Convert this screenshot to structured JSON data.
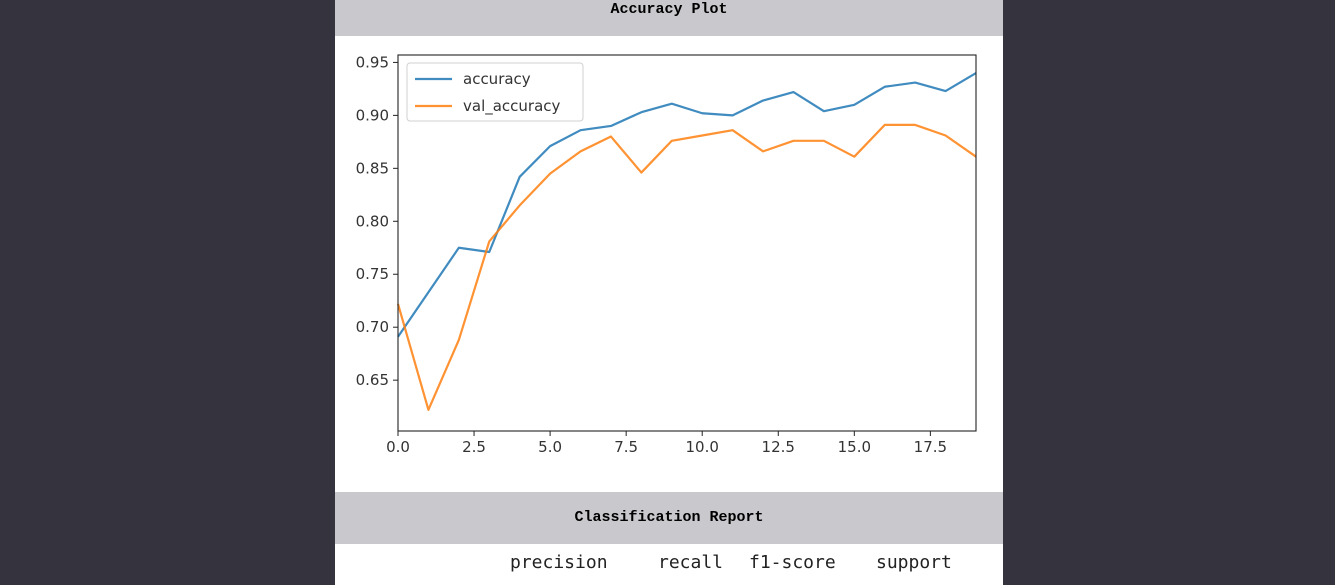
{
  "headers": {
    "accuracy_plot": "Accuracy Plot",
    "classification_report": "Classification Report"
  },
  "report": {
    "columns": [
      "precision",
      "recall",
      "f1-score",
      "support"
    ]
  },
  "colors": {
    "background": "#34333e",
    "header_bg": "#c8c8cd",
    "accuracy": "#1f77b4",
    "val_accuracy": "#ff7f0e"
  },
  "chart_data": {
    "type": "line",
    "title": "",
    "xlabel": "",
    "ylabel": "",
    "xlim": [
      0,
      19
    ],
    "ylim": [
      0.602,
      0.957
    ],
    "xticks": [
      0.0,
      2.5,
      5.0,
      7.5,
      10.0,
      12.5,
      15.0,
      17.5
    ],
    "xtick_labels": [
      "0.0",
      "2.5",
      "5.0",
      "7.5",
      "10.0",
      "12.5",
      "15.0",
      "17.5"
    ],
    "yticks": [
      0.65,
      0.7,
      0.75,
      0.8,
      0.85,
      0.9,
      0.95
    ],
    "ytick_labels": [
      "0.65",
      "0.70",
      "0.75",
      "0.80",
      "0.85",
      "0.90",
      "0.95"
    ],
    "grid": false,
    "legend_position": "top-left",
    "x": [
      0,
      1,
      2,
      3,
      4,
      5,
      6,
      7,
      8,
      9,
      10,
      11,
      12,
      13,
      14,
      15,
      16,
      17,
      18,
      19
    ],
    "series": [
      {
        "name": "accuracy",
        "color": "#1f77b4",
        "values": [
          0.691,
          0.733,
          0.775,
          0.771,
          0.842,
          0.871,
          0.886,
          0.89,
          0.903,
          0.911,
          0.902,
          0.9,
          0.914,
          0.922,
          0.904,
          0.91,
          0.927,
          0.931,
          0.923,
          0.94
        ]
      },
      {
        "name": "val_accuracy",
        "color": "#ff7f0e",
        "values": [
          0.722,
          0.622,
          0.688,
          0.781,
          0.815,
          0.845,
          0.866,
          0.88,
          0.846,
          0.876,
          0.881,
          0.886,
          0.866,
          0.876,
          0.876,
          0.861,
          0.891,
          0.891,
          0.881,
          0.861
        ]
      }
    ]
  }
}
